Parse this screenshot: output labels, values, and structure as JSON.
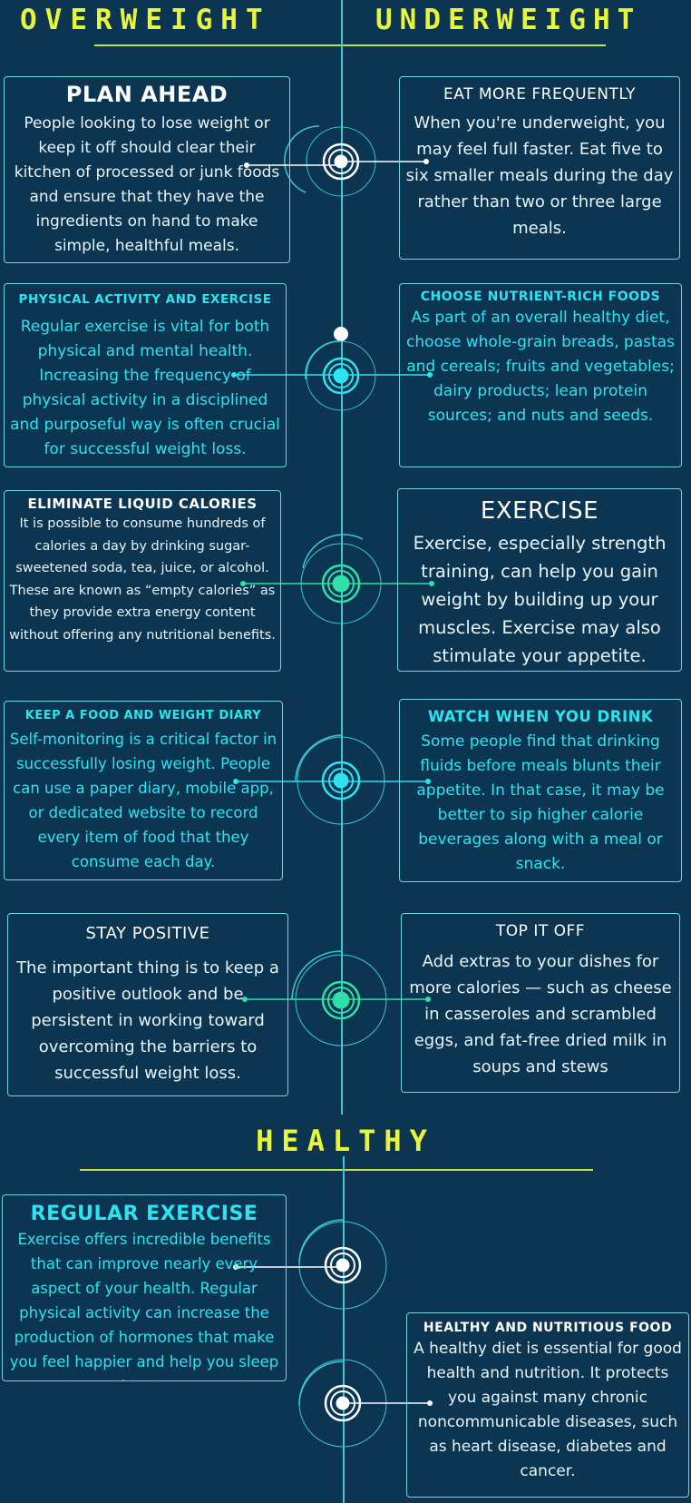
{
  "headers": {
    "overweight": "OVERWEIGHT",
    "underweight": "UNDERWEIGHT",
    "healthy": "HEALTHY"
  },
  "colors": {
    "background": "#0b3550",
    "heading_yellow": "#e8f53a",
    "line_cyan": "#3fc7d6",
    "accent_cyan": "#2ee3f0",
    "accent_green": "#2fe0a8",
    "card_border": "#6fd6e0"
  },
  "overweight": [
    {
      "title": "PLAN AHEAD",
      "body": "People looking to lose weight or keep it off should clear their kitchen of processed or junk foods and ensure that they have the ingredients on hand to make simple, healthful meals."
    },
    {
      "title": "PHYSICAL ACTIVITY AND EXERCISE",
      "body": "Regular exercise is vital for both physical and mental health. Increasing the frequency of physical activity in a disciplined and purposeful way is often crucial for successful weight loss."
    },
    {
      "title": "ELIMINATE LIQUID CALORIES",
      "body": "It is possible to consume hundreds of calories a day by drinking sugar-sweetened soda, tea, juice, or alcohol. These are known as “empty calories” as they provide extra energy content without offering any nutritional benefits."
    },
    {
      "title": "KEEP A FOOD AND WEIGHT DIARY",
      "body": "Self-monitoring is a critical factor in successfully losing weight. People can use a paper diary, mobile app, or dedicated website to record every item of food that they consume each day."
    },
    {
      "title": "STAY POSITIVE",
      "body": "The important thing is to keep a positive outlook and be persistent in working toward overcoming the barriers to successful weight loss."
    }
  ],
  "underweight": [
    {
      "title": "EAT MORE FREQUENTLY",
      "body": "When you're underweight, you may feel full faster. Eat five to six smaller meals during the day rather than two or three large meals."
    },
    {
      "title": "CHOOSE NUTRIENT-RICH FOODS",
      "body": "As part of an overall healthy diet, choose whole-grain breads, pastas and cereals; fruits and vegetables; dairy products; lean protein sources; and nuts and seeds."
    },
    {
      "title": "EXERCISE",
      "body": "Exercise, especially strength training, can help you gain weight by building up your muscles. Exercise may also stimulate your appetite."
    },
    {
      "title": "WATCH WHEN YOU DRINK",
      "body": "Some people find that drinking fluids before meals blunts their appetite. In that case, it may be better to sip higher calorie beverages along with a meal or snack."
    },
    {
      "title": "TOP IT OFF",
      "body": "Add extras to your dishes for more calories — such as cheese in casseroles and scrambled eggs, and fat-free dried milk in soups and stews"
    }
  ],
  "healthy": [
    {
      "title": "REGULAR EXERCISE",
      "body": "Exercise offers incredible benefits that can improve nearly every aspect of your health. Regular physical activity can increase the production of hormones that make you feel happier and help you sleep better"
    },
    {
      "title": "HEALTHY AND NUTRITIOUS FOOD",
      "body": "A healthy diet is essential for good health and nutrition. It protects you against many chronic noncommunicable diseases, such as heart disease, diabetes and cancer."
    }
  ]
}
